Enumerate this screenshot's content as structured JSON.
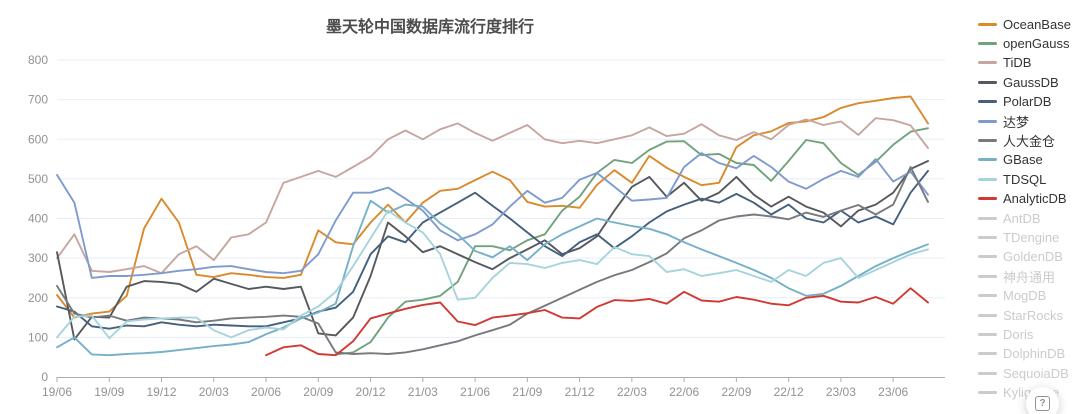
{
  "title": "墨天轮中国数据库流行度排行",
  "help_button": {
    "glyph": "?"
  },
  "chart_data": {
    "type": "line",
    "title": "墨天轮中国数据库流行度排行",
    "ylim": [
      0,
      800
    ],
    "y_ticks": [
      0,
      100,
      200,
      300,
      400,
      500,
      600,
      700,
      800
    ],
    "grid": true,
    "legend_position": "right",
    "inactive_color": "#c9cbce",
    "x": [
      "19/06",
      "19/07",
      "19/08",
      "19/09",
      "19/10",
      "19/11",
      "19/12",
      "20/01",
      "20/02",
      "20/03",
      "20/04",
      "20/05",
      "20/06",
      "20/07",
      "20/08",
      "20/09",
      "20/10",
      "20/11",
      "20/12",
      "21/01",
      "21/02",
      "21/03",
      "21/04",
      "21/05",
      "21/06",
      "21/07",
      "21/08",
      "21/09",
      "21/10",
      "21/11",
      "21/12",
      "22/01",
      "22/02",
      "22/03",
      "22/04",
      "22/05",
      "22/06",
      "22/07",
      "22/08",
      "22/09",
      "22/10",
      "22/11",
      "22/12",
      "23/01",
      "23/02",
      "23/03",
      "23/04",
      "23/05",
      "23/06",
      "23/07",
      "23/08"
    ],
    "x_tick_labels": [
      "19/06",
      "19/09",
      "19/12",
      "20/03",
      "20/06",
      "20/09",
      "20/12",
      "21/03",
      "21/06",
      "21/09",
      "21/12",
      "22/03",
      "22/06",
      "22/09",
      "22/12",
      "23/03",
      "23/06"
    ],
    "series": [
      {
        "name": "OceanBase",
        "color": "#d98a2b",
        "values": [
          207,
          150,
          160,
          165,
          205,
          375,
          450,
          390,
          258,
          252,
          262,
          258,
          252,
          250,
          258,
          370,
          340,
          335,
          390,
          435,
          390,
          440,
          470,
          475,
          497,
          518,
          497,
          442,
          430,
          432,
          427,
          485,
          522,
          490,
          558,
          528,
          505,
          484,
          490,
          580,
          610,
          620,
          641,
          645,
          656,
          679,
          691,
          697,
          704,
          708,
          640
        ]
      },
      {
        "name": "openGauss",
        "color": "#72a27c",
        "values": [
          null,
          null,
          null,
          null,
          null,
          null,
          null,
          null,
          null,
          null,
          null,
          null,
          null,
          null,
          null,
          null,
          57,
          62,
          88,
          150,
          190,
          195,
          205,
          240,
          330,
          330,
          320,
          345,
          360,
          420,
          455,
          515,
          548,
          540,
          573,
          594,
          595,
          560,
          563,
          540,
          535,
          495,
          545,
          598,
          590,
          540,
          510,
          543,
          586,
          619,
          628
        ]
      },
      {
        "name": "TiDB",
        "color": "#c7a6a0",
        "values": [
          300,
          360,
          268,
          265,
          272,
          280,
          262,
          310,
          330,
          295,
          352,
          360,
          390,
          490,
          505,
          520,
          505,
          530,
          556,
          600,
          622,
          600,
          625,
          640,
          616,
          596,
          616,
          636,
          600,
          590,
          596,
          590,
          600,
          610,
          630,
          608,
          614,
          638,
          610,
          598,
          618,
          600,
          636,
          650,
          636,
          645,
          611,
          653,
          648,
          635,
          578
        ]
      },
      {
        "name": "GaussDB",
        "color": "#55585c",
        "values": [
          315,
          95,
          152,
          150,
          228,
          242,
          240,
          235,
          215,
          248,
          235,
          222,
          228,
          222,
          228,
          110,
          105,
          150,
          255,
          390,
          355,
          315,
          330,
          310,
          290,
          272,
          300,
          322,
          345,
          310,
          325,
          355,
          420,
          480,
          505,
          455,
          490,
          445,
          465,
          505,
          460,
          430,
          455,
          430,
          415,
          380,
          420,
          435,
          465,
          525,
          545
        ]
      },
      {
        "name": "PolarDB",
        "color": "#44607c",
        "values": [
          178,
          165,
          128,
          122,
          130,
          128,
          138,
          132,
          128,
          132,
          130,
          128,
          128,
          138,
          148,
          165,
          175,
          215,
          310,
          355,
          340,
          390,
          415,
          440,
          465,
          432,
          400,
          365,
          330,
          305,
          340,
          360,
          325,
          355,
          390,
          418,
          435,
          450,
          440,
          462,
          440,
          410,
          435,
          400,
          390,
          420,
          390,
          405,
          385,
          465,
          520
        ]
      },
      {
        "name": "达梦",
        "color": "#7f9bce",
        "values": [
          510,
          440,
          250,
          255,
          255,
          258,
          262,
          268,
          272,
          278,
          280,
          272,
          265,
          262,
          268,
          310,
          395,
          465,
          465,
          478,
          450,
          420,
          370,
          345,
          360,
          385,
          430,
          470,
          440,
          452,
          498,
          515,
          480,
          445,
          448,
          452,
          530,
          565,
          540,
          527,
          558,
          530,
          493,
          475,
          500,
          520,
          505,
          550,
          493,
          518,
          460
        ]
      },
      {
        "name": "人大金仓",
        "color": "#77797c",
        "values": [
          230,
          160,
          150,
          155,
          142,
          150,
          148,
          145,
          138,
          142,
          148,
          150,
          152,
          155,
          152,
          135,
          62,
          58,
          60,
          58,
          62,
          70,
          80,
          90,
          105,
          118,
          132,
          160,
          180,
          200,
          220,
          240,
          257,
          270,
          290,
          312,
          350,
          370,
          395,
          405,
          410,
          405,
          398,
          415,
          404,
          420,
          434,
          410,
          435,
          530,
          442
        ]
      },
      {
        "name": "GBase",
        "color": "#76b0c8",
        "values": [
          75,
          100,
          57,
          55,
          58,
          60,
          63,
          68,
          73,
          78,
          82,
          88,
          108,
          125,
          148,
          163,
          185,
          330,
          445,
          415,
          435,
          430,
          388,
          360,
          318,
          302,
          330,
          295,
          335,
          360,
          380,
          400,
          390,
          381,
          374,
          360,
          340,
          322,
          305,
          288,
          270,
          250,
          224,
          205,
          210,
          230,
          255,
          280,
          300,
          318,
          335
        ]
      },
      {
        "name": "TDSQL",
        "color": "#a6d4dc",
        "values": [
          100,
          152,
          155,
          98,
          140,
          145,
          148,
          150,
          150,
          118,
          100,
          118,
          125,
          120,
          155,
          178,
          215,
          280,
          350,
          420,
          390,
          365,
          310,
          195,
          200,
          250,
          288,
          285,
          275,
          288,
          295,
          285,
          328,
          310,
          305,
          265,
          272,
          255,
          262,
          270,
          255,
          240,
          270,
          255,
          288,
          300,
          250,
          270,
          290,
          310,
          322
        ]
      },
      {
        "name": "AnalyticDB",
        "color": "#d03a33",
        "values": [
          null,
          null,
          null,
          null,
          null,
          null,
          null,
          null,
          null,
          null,
          null,
          null,
          55,
          75,
          80,
          58,
          55,
          90,
          148,
          160,
          172,
          182,
          188,
          140,
          131,
          150,
          155,
          161,
          169,
          150,
          148,
          177,
          194,
          192,
          197,
          185,
          215,
          193,
          190,
          202,
          195,
          185,
          181,
          200,
          205,
          190,
          188,
          202,
          185,
          224,
          188
        ]
      }
    ],
    "legend_inactive": [
      "AntDB",
      "TDengine",
      "GoldenDB",
      "神舟通用",
      "MogDB",
      "StarRocks",
      "Doris",
      "DolphinDB",
      "SequoiaDB",
      "Kyligence"
    ]
  }
}
